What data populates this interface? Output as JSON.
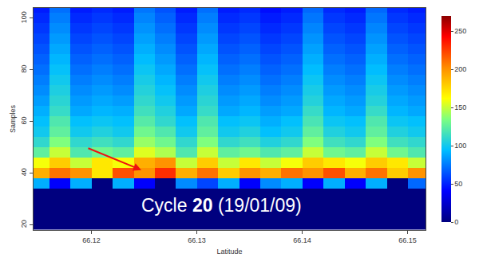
{
  "chart_data": {
    "type": "heatmap",
    "xlabel": "Latitude",
    "ylabel": "Samples",
    "annotations": [
      {
        "text": "Cycle 20 (19/01/09)"
      }
    ],
    "x": [
      66.115,
      66.117,
      66.119,
      66.121,
      66.123,
      66.125,
      66.127,
      66.129,
      66.131,
      66.133,
      66.135,
      66.137,
      66.139,
      66.141,
      66.143,
      66.145,
      66.147,
      66.149,
      66.151
    ],
    "y": [
      20,
      24,
      28,
      32,
      36,
      40,
      44,
      48,
      52,
      56,
      60,
      64,
      68,
      72,
      76,
      80,
      84,
      88,
      92,
      96,
      100,
      104
    ],
    "z": [
      [
        0,
        0,
        0,
        0,
        0,
        0,
        0,
        0,
        0,
        0,
        0,
        0,
        0,
        0,
        0,
        0,
        0,
        0,
        0
      ],
      [
        0,
        0,
        0,
        0,
        0,
        0,
        0,
        0,
        0,
        0,
        0,
        0,
        0,
        0,
        0,
        0,
        0,
        0,
        0
      ],
      [
        0,
        0,
        0,
        0,
        0,
        0,
        0,
        0,
        0,
        0,
        0,
        0,
        0,
        0,
        0,
        0,
        0,
        0,
        0
      ],
      [
        0,
        0,
        0,
        0,
        0,
        0,
        0,
        0,
        0,
        0,
        0,
        0,
        0,
        0,
        0,
        0,
        0,
        0,
        0
      ],
      [
        90,
        40,
        90,
        0,
        90,
        40,
        0,
        80,
        60,
        90,
        40,
        80,
        90,
        40,
        90,
        40,
        90,
        0,
        70
      ],
      [
        190,
        210,
        200,
        170,
        220,
        200,
        230,
        190,
        210,
        180,
        200,
        190,
        210,
        200,
        220,
        190,
        210,
        180,
        200
      ],
      [
        160,
        180,
        150,
        170,
        160,
        190,
        200,
        150,
        180,
        150,
        170,
        150,
        160,
        180,
        170,
        160,
        180,
        170,
        150
      ],
      [
        125,
        150,
        120,
        130,
        125,
        155,
        145,
        120,
        150,
        125,
        130,
        120,
        125,
        150,
        130,
        125,
        150,
        130,
        120
      ],
      [
        110,
        135,
        110,
        115,
        110,
        140,
        130,
        110,
        135,
        110,
        115,
        105,
        110,
        135,
        115,
        110,
        135,
        115,
        110
      ],
      [
        100,
        125,
        100,
        105,
        100,
        130,
        120,
        100,
        125,
        100,
        105,
        95,
        100,
        125,
        105,
        100,
        125,
        105,
        100
      ],
      [
        95,
        120,
        95,
        98,
        95,
        122,
        110,
        95,
        120,
        95,
        98,
        90,
        95,
        118,
        98,
        95,
        120,
        98,
        95
      ],
      [
        90,
        112,
        88,
        92,
        90,
        115,
        105,
        88,
        112,
        88,
        92,
        85,
        88,
        112,
        92,
        88,
        112,
        92,
        88
      ],
      [
        85,
        108,
        84,
        88,
        85,
        110,
        100,
        84,
        108,
        84,
        88,
        80,
        84,
        106,
        88,
        84,
        106,
        88,
        84
      ],
      [
        80,
        104,
        80,
        84,
        80,
        106,
        96,
        80,
        104,
        80,
        84,
        76,
        80,
        102,
        84,
        80,
        102,
        84,
        80
      ],
      [
        76,
        100,
        76,
        80,
        76,
        102,
        92,
        76,
        100,
        76,
        80,
        72,
        76,
        98,
        80,
        76,
        98,
        80,
        76
      ],
      [
        72,
        96,
        72,
        76,
        72,
        98,
        88,
        72,
        96,
        72,
        76,
        68,
        72,
        94,
        76,
        72,
        94,
        76,
        72
      ],
      [
        68,
        92,
        68,
        72,
        68,
        94,
        84,
        68,
        92,
        68,
        72,
        64,
        68,
        90,
        72,
        68,
        90,
        72,
        68
      ],
      [
        64,
        88,
        64,
        68,
        64,
        90,
        80,
        64,
        88,
        64,
        68,
        60,
        64,
        86,
        68,
        64,
        86,
        68,
        64
      ],
      [
        60,
        84,
        60,
        64,
        60,
        86,
        76,
        60,
        84,
        60,
        64,
        56,
        60,
        82,
        64,
        60,
        82,
        64,
        60
      ],
      [
        56,
        80,
        56,
        60,
        56,
        82,
        72,
        56,
        80,
        56,
        60,
        52,
        56,
        78,
        60,
        56,
        78,
        60,
        56
      ],
      [
        52,
        76,
        52,
        56,
        52,
        78,
        68,
        52,
        76,
        52,
        56,
        48,
        52,
        74,
        56,
        52,
        74,
        56,
        52
      ],
      [
        48,
        72,
        48,
        52,
        48,
        74,
        64,
        48,
        72,
        48,
        52,
        44,
        48,
        70,
        52,
        48,
        70,
        52,
        48
      ]
    ],
    "xlim": [
      66.1145,
      66.1517
    ],
    "xticks": [
      66.12,
      66.13,
      66.14,
      66.15
    ],
    "ylim": [
      18,
      104
    ],
    "yticks": [
      20,
      40,
      60,
      80,
      100
    ],
    "zlim": [
      0,
      270
    ],
    "zticks": [
      0,
      50,
      100,
      150,
      200,
      250
    ]
  }
}
